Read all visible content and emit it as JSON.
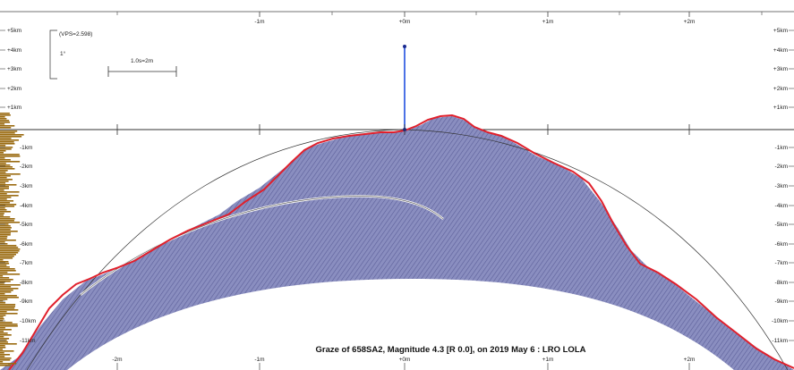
{
  "scale_box": {
    "vps_label": "(VPS=2.598)",
    "degree_label": "1°",
    "distance_label": "1.0s=2m"
  },
  "ruler_top": {
    "x_ticks": [
      "-1m",
      "+0m",
      "+1m",
      "+2m"
    ]
  },
  "ruler_bottom": {
    "x_ticks": [
      "-2m",
      "-1m",
      "+0m",
      "+1m",
      "+2m"
    ]
  },
  "left_axis_upper": [
    "+5km",
    "+4km",
    "+3km",
    "+2km",
    "+1km"
  ],
  "left_axis_lower": [
    "-1km",
    "-2km",
    "-3km",
    "-4km",
    "-5km",
    "-6km",
    "-7km",
    "-8km",
    "-9km",
    "-10km",
    "-11km"
  ],
  "right_axis_upper": [
    "+5km",
    "+4km",
    "+3km",
    "+2km",
    "+1km"
  ],
  "right_axis_lower": [
    "-1km",
    "-2km",
    "-3km",
    "-4km",
    "-5km",
    "-6km",
    "-7km",
    "-8km",
    "-9km",
    "-10km",
    "-11km"
  ],
  "caption": "Graze of 658SA2, Magnitude 4.3 [R 0.0], on 2019 May 6 : LRO LOLA",
  "colors": {
    "terrain": "#7b7fb5",
    "profile": "#e0202c",
    "star_track": "#1f4fe0",
    "histogram": "#9a6a10"
  }
}
